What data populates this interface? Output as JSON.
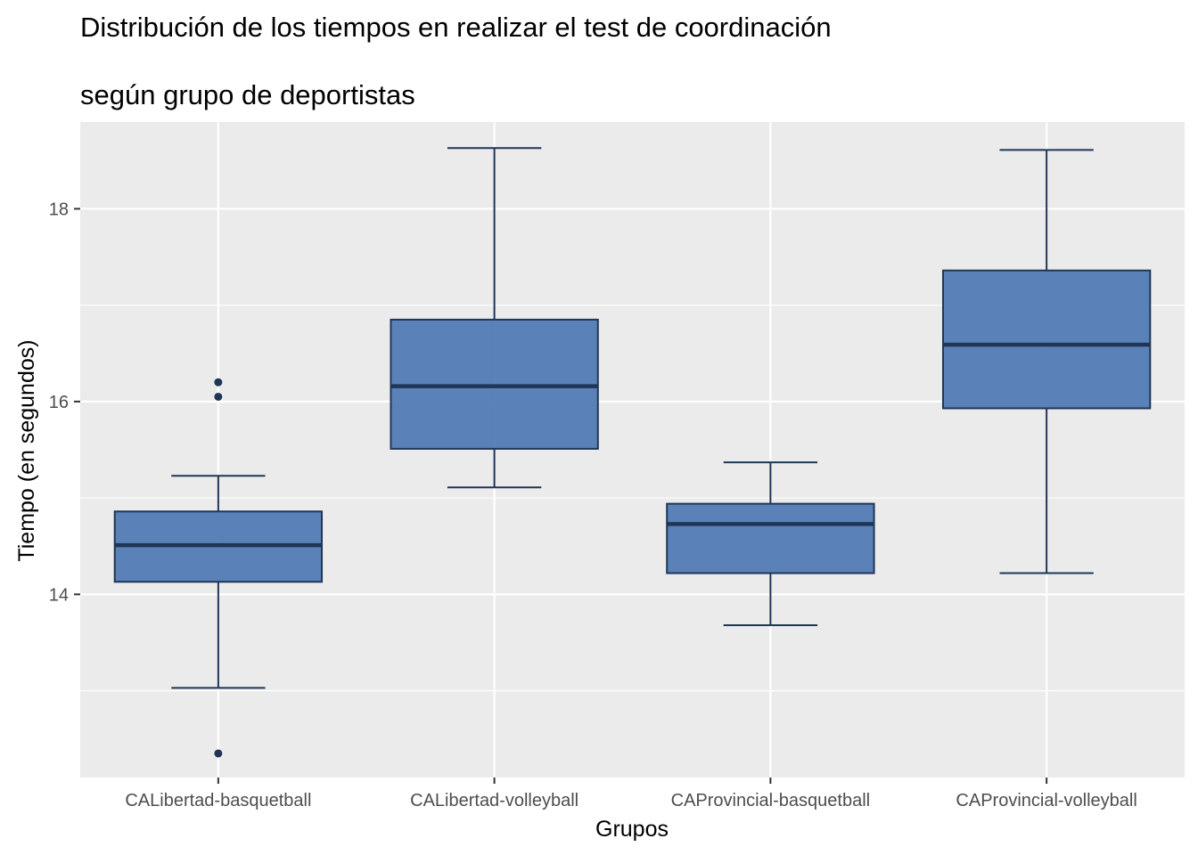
{
  "chart_data": {
    "type": "boxplot",
    "title": "Distribución de los tiempos en realizar el test de coordinación",
    "subtitle": "según grupo de deportistas",
    "xlabel": "Grupos",
    "ylabel": "Tiempo (en segundos)",
    "ylim": [
      12.1,
      18.9
    ],
    "yticks": [
      14,
      16,
      18
    ],
    "grid": true,
    "categories": [
      "CALibertad-basquetball",
      "CALibertad-volleyball",
      "CAProvincial-basquetball",
      "CAProvincial-volleyball"
    ],
    "boxes": [
      {
        "whisker_low": 13.03,
        "q1": 14.13,
        "median": 14.51,
        "q3": 14.86,
        "whisker_high": 15.23,
        "outliers": [
          16.2,
          16.05,
          12.35
        ]
      },
      {
        "whisker_low": 15.11,
        "q1": 15.51,
        "median": 16.16,
        "q3": 16.85,
        "whisker_high": 18.63,
        "outliers": []
      },
      {
        "whisker_low": 13.68,
        "q1": 14.22,
        "median": 14.73,
        "q3": 14.94,
        "whisker_high": 15.37,
        "outliers": []
      },
      {
        "whisker_low": 14.22,
        "q1": 15.93,
        "median": 16.59,
        "q3": 17.36,
        "whisker_high": 18.61,
        "outliers": []
      }
    ],
    "colors": {
      "box_fill": "#4f79b4",
      "box_line": "#1f3657",
      "panel_bg": "#ebebeb",
      "grid": "#ffffff",
      "tick_text": "#4d4d4d"
    }
  }
}
